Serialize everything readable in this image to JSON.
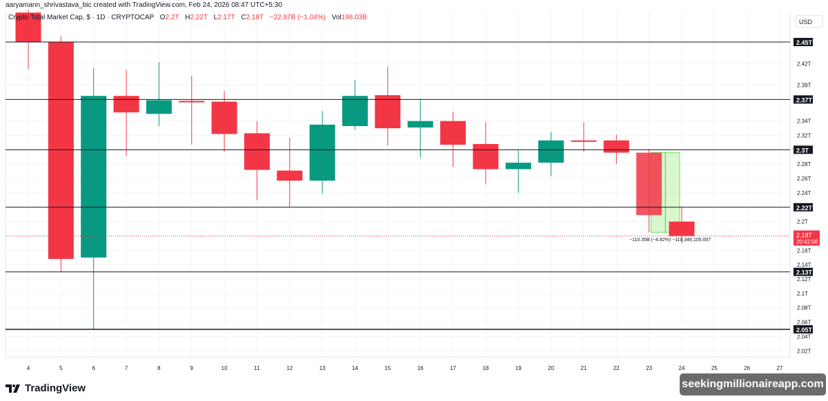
{
  "header": {
    "credit": "aaryamann_shrivastava_bic created with TradingView.com, Feb 24, 2026 08:47 UTC+5:30",
    "symbol": "Crypto Total Market Cap, $ · 1D · CRYPTOCAP",
    "open_label": "O",
    "open": "2.2T",
    "high_label": "H",
    "high": "2.22T",
    "low_label": "L",
    "low": "2.17T",
    "close_label": "C",
    "close": "2.18T",
    "change": "−22.97B (−1.04%)",
    "vol_label": "Vol",
    "vol": "198.03B"
  },
  "currency": "USD",
  "last_price": {
    "label": "2.18T",
    "countdown": "20:42:08",
    "color": "#f23645"
  },
  "measure_label": "−110.35B (−4.82%) −110,346,105,007",
  "footer": {
    "brand": "TradingView"
  },
  "watermark": "seekingmillionaireapp.com",
  "colors": {
    "up": "#089981",
    "down": "#f23645",
    "grid": "#f0f3fa",
    "hline": "#131722",
    "measure_fill": "#b8f0a8"
  },
  "chart_data": {
    "type": "candlestick",
    "title": "Crypto Total Market Cap, $ · 1D · CRYPTOCAP",
    "xlabel": "",
    "ylabel": "USD",
    "x_ticks": [
      "4",
      "5",
      "6",
      "7",
      "8",
      "9",
      "10",
      "11",
      "12",
      "13",
      "14",
      "15",
      "16",
      "17",
      "18",
      "19",
      "20",
      "21",
      "22",
      "23",
      "24",
      "25",
      "26",
      "27"
    ],
    "y_ticks": [
      "2.45T",
      "2.42T",
      "2.39T",
      "2.37T",
      "2.34T",
      "2.32T",
      "2.3T",
      "2.28T",
      "2.26T",
      "2.24T",
      "2.22T",
      "2.2T",
      "2.18T",
      "2.16T",
      "2.14T",
      "2.12T",
      "2.1T",
      "2.08T",
      "2.06T",
      "2.04T",
      "2.02T"
    ],
    "ylim": [
      2.0,
      2.5
    ],
    "candles": [
      {
        "day": "4",
        "open": 2.491,
        "high": 2.495,
        "low": 2.412,
        "close": 2.45
      },
      {
        "day": "5",
        "open": 2.45,
        "high": 2.458,
        "low": 2.13,
        "close": 2.148
      },
      {
        "day": "6",
        "open": 2.15,
        "high": 2.414,
        "low": 2.05,
        "close": 2.375
      },
      {
        "day": "7",
        "open": 2.375,
        "high": 2.411,
        "low": 2.291,
        "close": 2.352
      },
      {
        "day": "8",
        "open": 2.35,
        "high": 2.422,
        "low": 2.333,
        "close": 2.369
      },
      {
        "day": "9",
        "open": 2.368,
        "high": 2.403,
        "low": 2.307,
        "close": 2.366
      },
      {
        "day": "10",
        "open": 2.367,
        "high": 2.382,
        "low": 2.297,
        "close": 2.322
      },
      {
        "day": "11",
        "open": 2.323,
        "high": 2.34,
        "low": 2.23,
        "close": 2.272
      },
      {
        "day": "12",
        "open": 2.271,
        "high": 2.317,
        "low": 2.22,
        "close": 2.257
      },
      {
        "day": "13",
        "open": 2.257,
        "high": 2.354,
        "low": 2.239,
        "close": 2.335
      },
      {
        "day": "14",
        "open": 2.333,
        "high": 2.397,
        "low": 2.328,
        "close": 2.375
      },
      {
        "day": "15",
        "open": 2.376,
        "high": 2.416,
        "low": 2.306,
        "close": 2.33
      },
      {
        "day": "16",
        "open": 2.331,
        "high": 2.371,
        "low": 2.289,
        "close": 2.34
      },
      {
        "day": "17",
        "open": 2.34,
        "high": 2.353,
        "low": 2.276,
        "close": 2.307
      },
      {
        "day": "18",
        "open": 2.308,
        "high": 2.339,
        "low": 2.252,
        "close": 2.273
      },
      {
        "day": "19",
        "open": 2.273,
        "high": 2.299,
        "low": 2.24,
        "close": 2.282
      },
      {
        "day": "20",
        "open": 2.282,
        "high": 2.325,
        "low": 2.263,
        "close": 2.313
      },
      {
        "day": "21",
        "open": 2.313,
        "high": 2.338,
        "low": 2.297,
        "close": 2.312
      },
      {
        "day": "22",
        "open": 2.313,
        "high": 2.321,
        "low": 2.28,
        "close": 2.296
      },
      {
        "day": "23",
        "open": 2.296,
        "high": 2.301,
        "low": 2.185,
        "close": 2.209
      },
      {
        "day": "24",
        "open": 2.2,
        "high": 2.22,
        "low": 2.17,
        "close": 2.18
      }
    ],
    "horizontal_lines": [
      {
        "price": 2.45,
        "label": "2.45T"
      },
      {
        "price": 2.37,
        "label": "2.37T"
      },
      {
        "price": 2.3,
        "label": "2.3T"
      },
      {
        "price": 2.22,
        "label": "2.22T"
      },
      {
        "price": 2.13,
        "label": "2.13T"
      },
      {
        "price": 2.05,
        "label": "2.05T"
      }
    ],
    "last_price_line": 2.18,
    "measurement": {
      "from_day": "23",
      "to_day": "24",
      "change": "−110.35B",
      "pct": "−4.82%",
      "raw": "−110,346,105,007"
    },
    "grid": true
  }
}
